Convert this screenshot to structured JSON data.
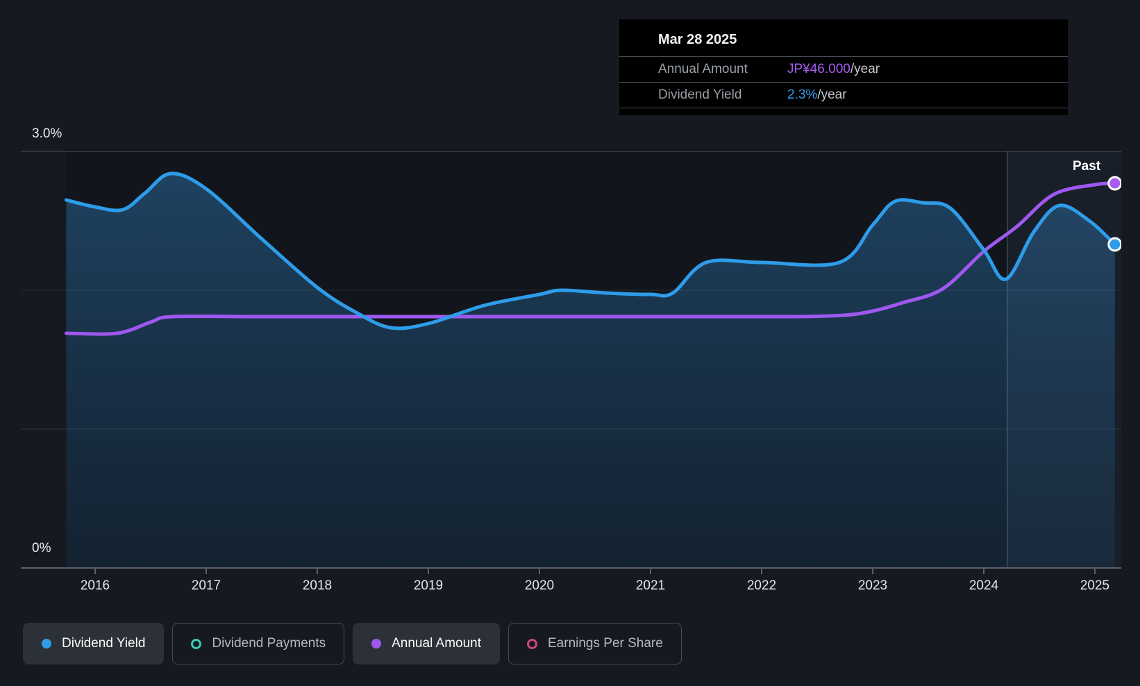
{
  "past_label": "Past",
  "tooltip": {
    "date": "Mar 28 2025",
    "rows": [
      {
        "label": "Annual Amount",
        "value": "JP¥46.000",
        "suffix": "/year",
        "color": "#a85bf2"
      },
      {
        "label": "Dividend Yield",
        "value": "2.3%",
        "suffix": "/year",
        "color": "#2e9ce9"
      }
    ]
  },
  "axis": {
    "y_top_label": "3.0%",
    "y_bottom_label": "0%",
    "x_labels": [
      "2016",
      "2017",
      "2018",
      "2019",
      "2020",
      "2021",
      "2022",
      "2023",
      "2024",
      "2025"
    ]
  },
  "legend": [
    {
      "label": "Dividend Yield",
      "color": "#2e9ce9",
      "active": true
    },
    {
      "label": "Dividend Payments",
      "color": "#3fc8b4",
      "active": false
    },
    {
      "label": "Annual Amount",
      "color": "#9e58ef",
      "active": true
    },
    {
      "label": "Earnings Per Share",
      "color": "#cc4480",
      "active": false
    }
  ],
  "colors": {
    "background": "#161a20",
    "plot_background": "#12161c",
    "yield_line": "#2e9ce9",
    "amount_line": "#9e58ef",
    "area_top": "#2a6da3",
    "area_bottom": "#173a5a",
    "tooltip_background": "#000000",
    "grid": "#3c4147"
  },
  "chart_data": {
    "type": "line",
    "title": "Dividend history (past)",
    "x_axis": {
      "tick_labels": [
        "2016",
        "2017",
        "2018",
        "2019",
        "2020",
        "2021",
        "2022",
        "2023",
        "2024",
        "2025"
      ],
      "range_years": [
        2015.74,
        2025.18
      ]
    },
    "y_axis": {
      "tick_label_top": "3.0%",
      "tick_label_bottom": "0%",
      "range_pct": [
        0,
        3.0
      ],
      "gridlines_pct": [
        1.0,
        2.0,
        3.0
      ],
      "grid": true
    },
    "past_region_start_year": 2024.22,
    "legend_position": "bottom-left",
    "series": [
      {
        "name": "Dividend Yield",
        "unit": "%",
        "visible": true,
        "area_fill": true,
        "end_value_label": "2.3%/year",
        "points": [
          [
            2015.74,
            2.65
          ],
          [
            2016.0,
            2.6
          ],
          [
            2016.25,
            2.58
          ],
          [
            2016.45,
            2.7
          ],
          [
            2016.68,
            2.84
          ],
          [
            2017.0,
            2.73
          ],
          [
            2017.5,
            2.37
          ],
          [
            2018.0,
            2.02
          ],
          [
            2018.35,
            1.84
          ],
          [
            2018.66,
            1.73
          ],
          [
            2019.0,
            1.76
          ],
          [
            2019.5,
            1.89
          ],
          [
            2020.0,
            1.97
          ],
          [
            2020.2,
            2.0
          ],
          [
            2020.6,
            1.98
          ],
          [
            2021.0,
            1.97
          ],
          [
            2021.2,
            1.98
          ],
          [
            2021.5,
            2.2
          ],
          [
            2022.0,
            2.2
          ],
          [
            2022.7,
            2.2
          ],
          [
            2023.0,
            2.47
          ],
          [
            2023.2,
            2.64
          ],
          [
            2023.45,
            2.63
          ],
          [
            2023.7,
            2.59
          ],
          [
            2024.0,
            2.29
          ],
          [
            2024.2,
            2.08
          ],
          [
            2024.45,
            2.42
          ],
          [
            2024.68,
            2.61
          ],
          [
            2024.95,
            2.5
          ],
          [
            2025.18,
            2.33
          ]
        ]
      },
      {
        "name": "Annual Amount",
        "unit": "JP¥ (own hidden scale, plotted in %-axis units)",
        "visible": true,
        "area_fill": false,
        "end_value_label": "JP¥46.000/year",
        "points": [
          [
            2015.74,
            1.69
          ],
          [
            2016.2,
            1.69
          ],
          [
            2016.5,
            1.77
          ],
          [
            2016.7,
            1.81
          ],
          [
            2017.5,
            1.81
          ],
          [
            2018.5,
            1.81
          ],
          [
            2019.5,
            1.81
          ],
          [
            2020.5,
            1.81
          ],
          [
            2021.5,
            1.81
          ],
          [
            2022.3,
            1.81
          ],
          [
            2022.74,
            1.82
          ],
          [
            2023.0,
            1.85
          ],
          [
            2023.27,
            1.91
          ],
          [
            2023.63,
            2.01
          ],
          [
            2024.0,
            2.28
          ],
          [
            2024.3,
            2.46
          ],
          [
            2024.63,
            2.69
          ],
          [
            2025.0,
            2.76
          ],
          [
            2025.18,
            2.77
          ]
        ]
      },
      {
        "name": "Dividend Payments",
        "visible": false,
        "points": []
      },
      {
        "name": "Earnings Per Share",
        "visible": false,
        "points": []
      }
    ]
  }
}
